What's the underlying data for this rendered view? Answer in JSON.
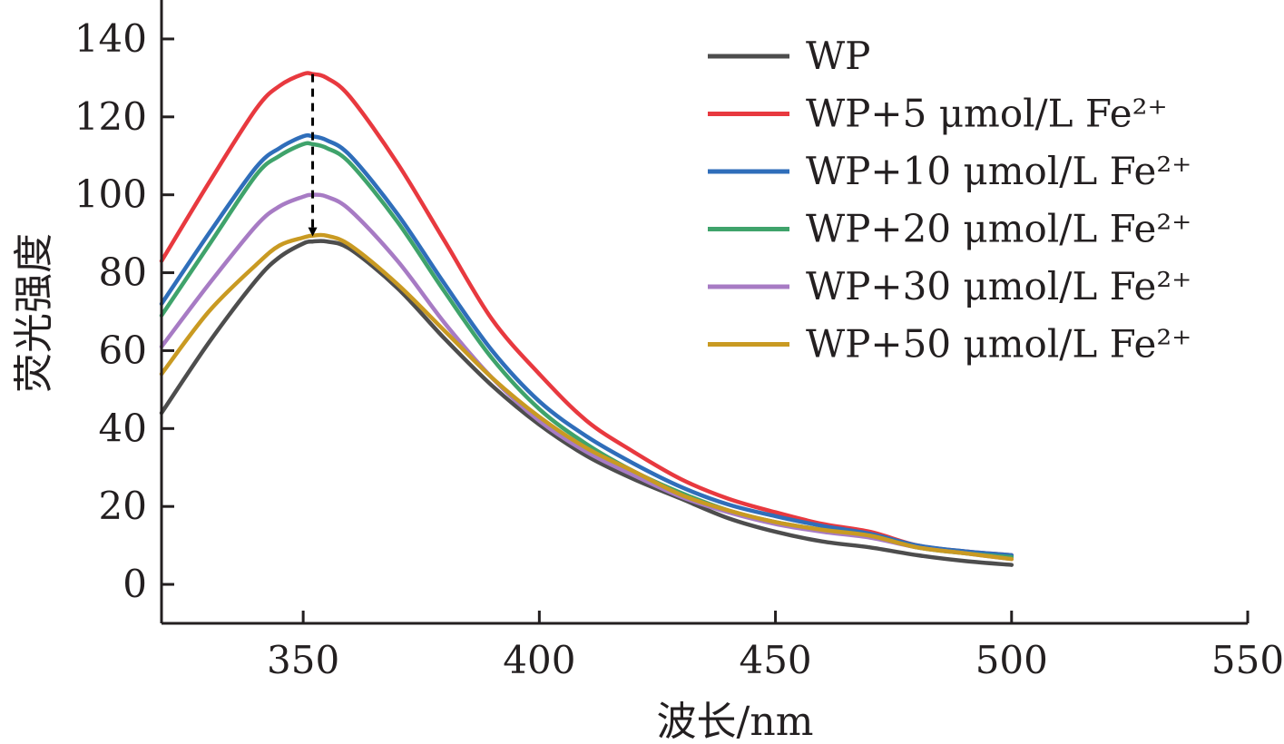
{
  "chart_data": {
    "type": "line",
    "title": "",
    "xlabel": "波长/nm",
    "ylabel": "荧光强度",
    "xlim": [
      320,
      550
    ],
    "ylim": [
      -10,
      150
    ],
    "xticks": [
      350,
      400,
      450,
      500,
      550
    ],
    "yticks": [
      0,
      20,
      40,
      60,
      80,
      100,
      120,
      140
    ],
    "grid": false,
    "legend_position": "top-right",
    "x": [
      320,
      330,
      340,
      345,
      350,
      352,
      355,
      360,
      370,
      380,
      390,
      400,
      410,
      420,
      430,
      440,
      450,
      460,
      470,
      480,
      490,
      500
    ],
    "series": [
      {
        "name": "WP",
        "color": "#4d4d4d",
        "values": [
          44,
          62,
          78,
          84,
          87.5,
          88,
          88,
          86,
          76,
          63,
          51,
          41,
          33,
          27,
          22,
          17,
          13.5,
          11,
          9.5,
          7.5,
          6,
          5
        ]
      },
      {
        "name": "WP+5 μmol/L Fe²⁺",
        "color": "#e8393f",
        "values": [
          83,
          103,
          122,
          128,
          131,
          131,
          130,
          125,
          108,
          88,
          68,
          54,
          42,
          34,
          27,
          22,
          18.5,
          15.5,
          13.5,
          10,
          8.5,
          7.5
        ]
      },
      {
        "name": "WP+10 μmol/L Fe²⁺",
        "color": "#2f6eba",
        "values": [
          72,
          90,
          107,
          112,
          115,
          115,
          114,
          110,
          95,
          77,
          60,
          47,
          38,
          31,
          25,
          20.5,
          17.5,
          15,
          13,
          10,
          8.5,
          7.5
        ]
      },
      {
        "name": "WP+20 μmol/L Fe²⁺",
        "color": "#3fa36b",
        "values": [
          69,
          87,
          105,
          110,
          113,
          113,
          112,
          108,
          93,
          75,
          58,
          45,
          36,
          29,
          23.5,
          19,
          16,
          14,
          12.5,
          9.5,
          8,
          7
        ]
      },
      {
        "name": "WP+30 μmol/L Fe²⁺",
        "color": "#a77bc4",
        "values": [
          61,
          77,
          92,
          97,
          99.5,
          100,
          99.5,
          96,
          83,
          67,
          53,
          42,
          34,
          28,
          22.5,
          18.5,
          15.5,
          13.5,
          12,
          9.5,
          8,
          6.5
        ]
      },
      {
        "name": "WP+50 μmol/L Fe²⁺",
        "color": "#c99a22",
        "values": [
          54,
          70,
          82,
          87,
          89,
          89.5,
          89.5,
          87,
          77,
          65,
          53,
          43,
          35,
          29,
          23,
          19,
          16,
          14,
          12.5,
          9.5,
          8,
          6.5
        ]
      }
    ],
    "annotation": {
      "type": "dashed-arrow",
      "x": 352,
      "from_y": 131,
      "to_y": 90
    }
  }
}
